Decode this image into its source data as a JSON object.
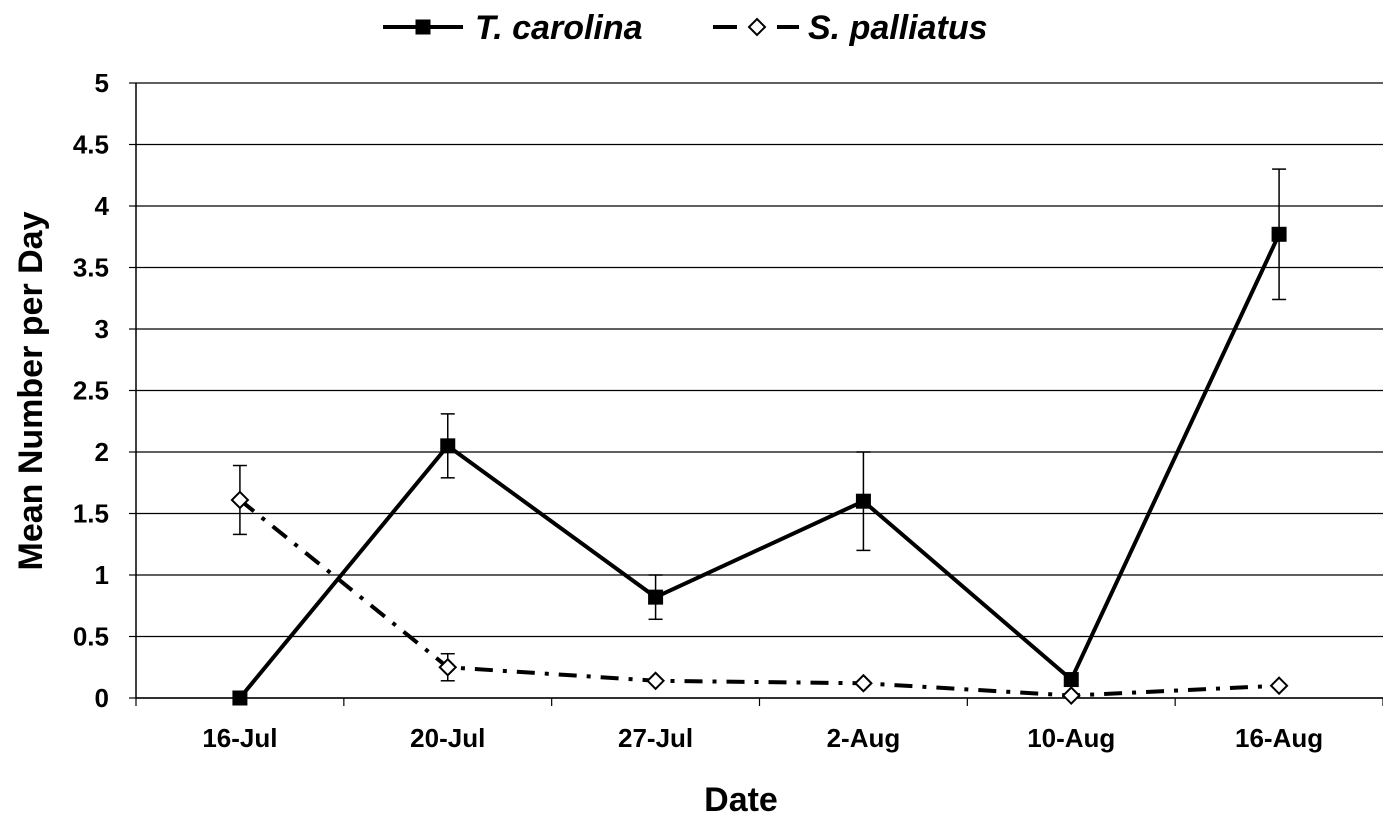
{
  "chart_data": {
    "type": "line",
    "categories": [
      "16-Jul",
      "20-Jul",
      "27-Jul",
      "2-Aug",
      "10-Aug",
      "16-Aug"
    ],
    "series": [
      {
        "name": "T. carolina",
        "values": [
          0,
          2.05,
          0.82,
          1.6,
          0.15,
          3.77
        ],
        "error": [
          null,
          0.26,
          0.18,
          0.4,
          null,
          0.53
        ],
        "marker": "filled-square",
        "line_style": "solid",
        "color": "#000000"
      },
      {
        "name": "S. palliatus",
        "values": [
          1.61,
          0.25,
          0.14,
          0.12,
          0.02,
          0.1
        ],
        "error": [
          0.28,
          0.11,
          null,
          null,
          null,
          null
        ],
        "marker": "open-diamond",
        "line_style": "dash-dot",
        "color": "#000000"
      }
    ],
    "xlabel": "Date",
    "ylabel": "Mean Number per Day",
    "ylim": [
      0,
      5
    ],
    "yticks": [
      "0",
      "0.5",
      "1",
      "1.5",
      "2",
      "2.5",
      "3",
      "3.5",
      "4",
      "4.5",
      "5"
    ],
    "grid": "horizontal",
    "legend_position": "top-center"
  }
}
